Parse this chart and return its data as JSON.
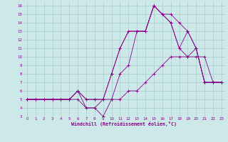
{
  "background_color": "#cce8e8",
  "grid_color": "#aacccc",
  "line_color": "#880088",
  "xlim": [
    -0.5,
    23.5
  ],
  "ylim": [
    3,
    16.5
  ],
  "xlabel": "Windchill (Refroidissement éolien,°C)",
  "xticks": [
    0,
    1,
    2,
    3,
    4,
    5,
    6,
    7,
    8,
    9,
    10,
    11,
    12,
    13,
    14,
    15,
    16,
    17,
    18,
    19,
    20,
    21,
    22,
    23
  ],
  "yticks": [
    3,
    4,
    5,
    6,
    7,
    8,
    9,
    10,
    11,
    12,
    13,
    14,
    15,
    16
  ],
  "s1_x": [
    0,
    1,
    2,
    3,
    4,
    5,
    6,
    7,
    8,
    9,
    10,
    11,
    12,
    13,
    14,
    15,
    16,
    17,
    18,
    19,
    20,
    21,
    22,
    23
  ],
  "s1_y": [
    5,
    5,
    5,
    5,
    5,
    5,
    5,
    4,
    4,
    5,
    5,
    5,
    6,
    6,
    7,
    8,
    9,
    10,
    10,
    10,
    10,
    10,
    7,
    7
  ],
  "s2_x": [
    0,
    1,
    2,
    3,
    4,
    5,
    6,
    7,
    8,
    9,
    10,
    11,
    12,
    13,
    14,
    15,
    16,
    17,
    18,
    19,
    20,
    21,
    22,
    23
  ],
  "s2_y": [
    5,
    5,
    5,
    5,
    5,
    5,
    6,
    5,
    5,
    5,
    8,
    11,
    13,
    13,
    13,
    16,
    15,
    15,
    14,
    13,
    11,
    7,
    7,
    7
  ],
  "s3_x": [
    0,
    1,
    2,
    3,
    4,
    5,
    6,
    7,
    8,
    9,
    10,
    11,
    12,
    13,
    14,
    15,
    16,
    17,
    18,
    19,
    20,
    21,
    22,
    23
  ],
  "s3_y": [
    5,
    5,
    5,
    5,
    5,
    5,
    6,
    4,
    4,
    3,
    5,
    8,
    9,
    13,
    13,
    16,
    15,
    14,
    11,
    10,
    11,
    7,
    7,
    7
  ],
  "s4_x": [
    0,
    3,
    5,
    6,
    7,
    8,
    9,
    10,
    11,
    12,
    13,
    14,
    15,
    16,
    17,
    18,
    19,
    20,
    21,
    22,
    23
  ],
  "s4_y": [
    5,
    5,
    5,
    6,
    5,
    5,
    5,
    8,
    11,
    13,
    13,
    13,
    16,
    15,
    14,
    11,
    13,
    11,
    7,
    7,
    7
  ]
}
